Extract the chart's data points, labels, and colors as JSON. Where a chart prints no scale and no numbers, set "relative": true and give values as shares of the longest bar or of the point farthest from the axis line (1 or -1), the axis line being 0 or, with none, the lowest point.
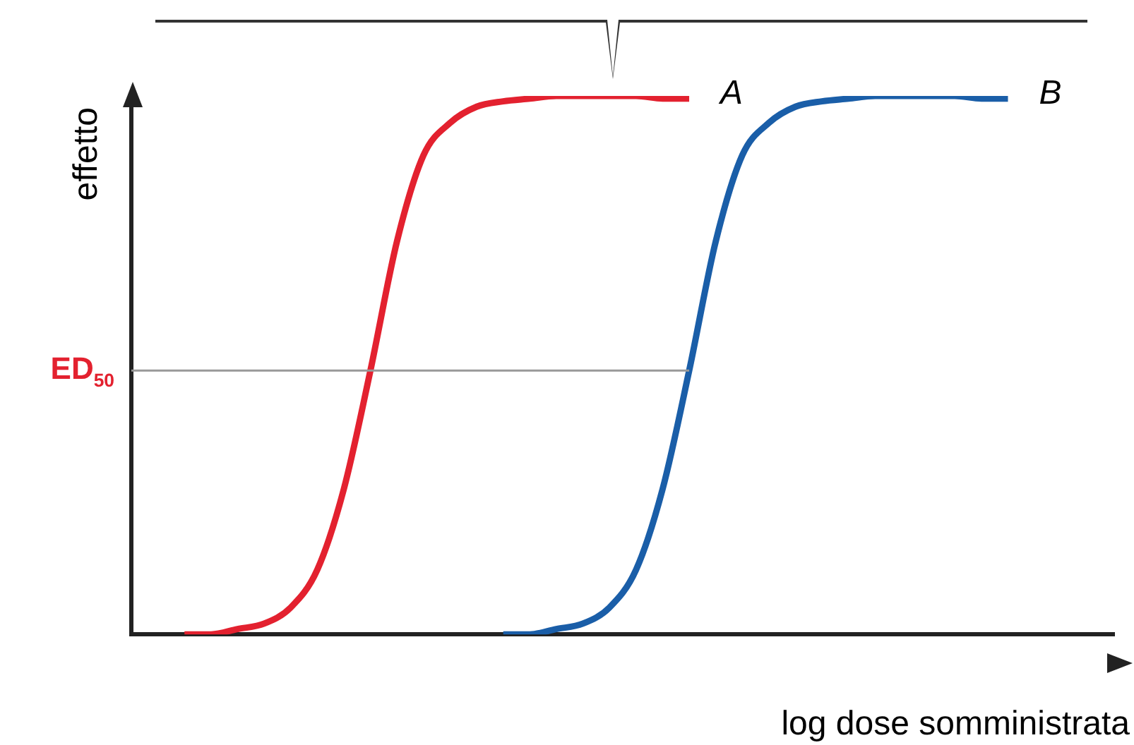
{
  "chart_data": {
    "type": "line",
    "relative": true,
    "xlabel": "log dose somministrata",
    "ylabel": "effetto",
    "legend": false,
    "marker": "none",
    "line_style": "solid",
    "grid": false,
    "categories": [
      null,
      null,
      null,
      null,
      null,
      null,
      null,
      null,
      null,
      null,
      null,
      null,
      null,
      null,
      null,
      null,
      null,
      null,
      null,
      null,
      null,
      null,
      null,
      null,
      null,
      null,
      null,
      null,
      null,
      null,
      null,
      null,
      null,
      null,
      null,
      null,
      null,
      null
    ],
    "series": [
      {
        "name": "A",
        "color": "#e3212f",
        "values": [
          null,
          null,
          0,
          0,
          0.01,
          0.02,
          0.05,
          0.12,
          0.27,
          0.49,
          0.73,
          0.89,
          0.95,
          0.98,
          0.99,
          0.995,
          1,
          1,
          1,
          1,
          0.995,
          0.995,
          null,
          null,
          null,
          null,
          null,
          null,
          null,
          null,
          null,
          null,
          null,
          null,
          null,
          null,
          null,
          null
        ]
      },
      {
        "name": "B",
        "color": "#1a5ea8",
        "values": [
          null,
          null,
          null,
          null,
          null,
          null,
          null,
          null,
          null,
          null,
          null,
          null,
          null,
          null,
          0,
          0,
          0.01,
          0.02,
          0.05,
          0.12,
          0.27,
          0.49,
          0.73,
          0.89,
          0.95,
          0.98,
          0.99,
          0.995,
          1,
          1,
          1,
          1,
          0.995,
          0.995,
          null,
          null,
          null,
          null
        ]
      }
    ],
    "ref_lines": [
      {
        "axis": "y",
        "value": 0.49,
        "label": "ED$_{50}$",
        "color": "#999999"
      }
    ]
  }
}
